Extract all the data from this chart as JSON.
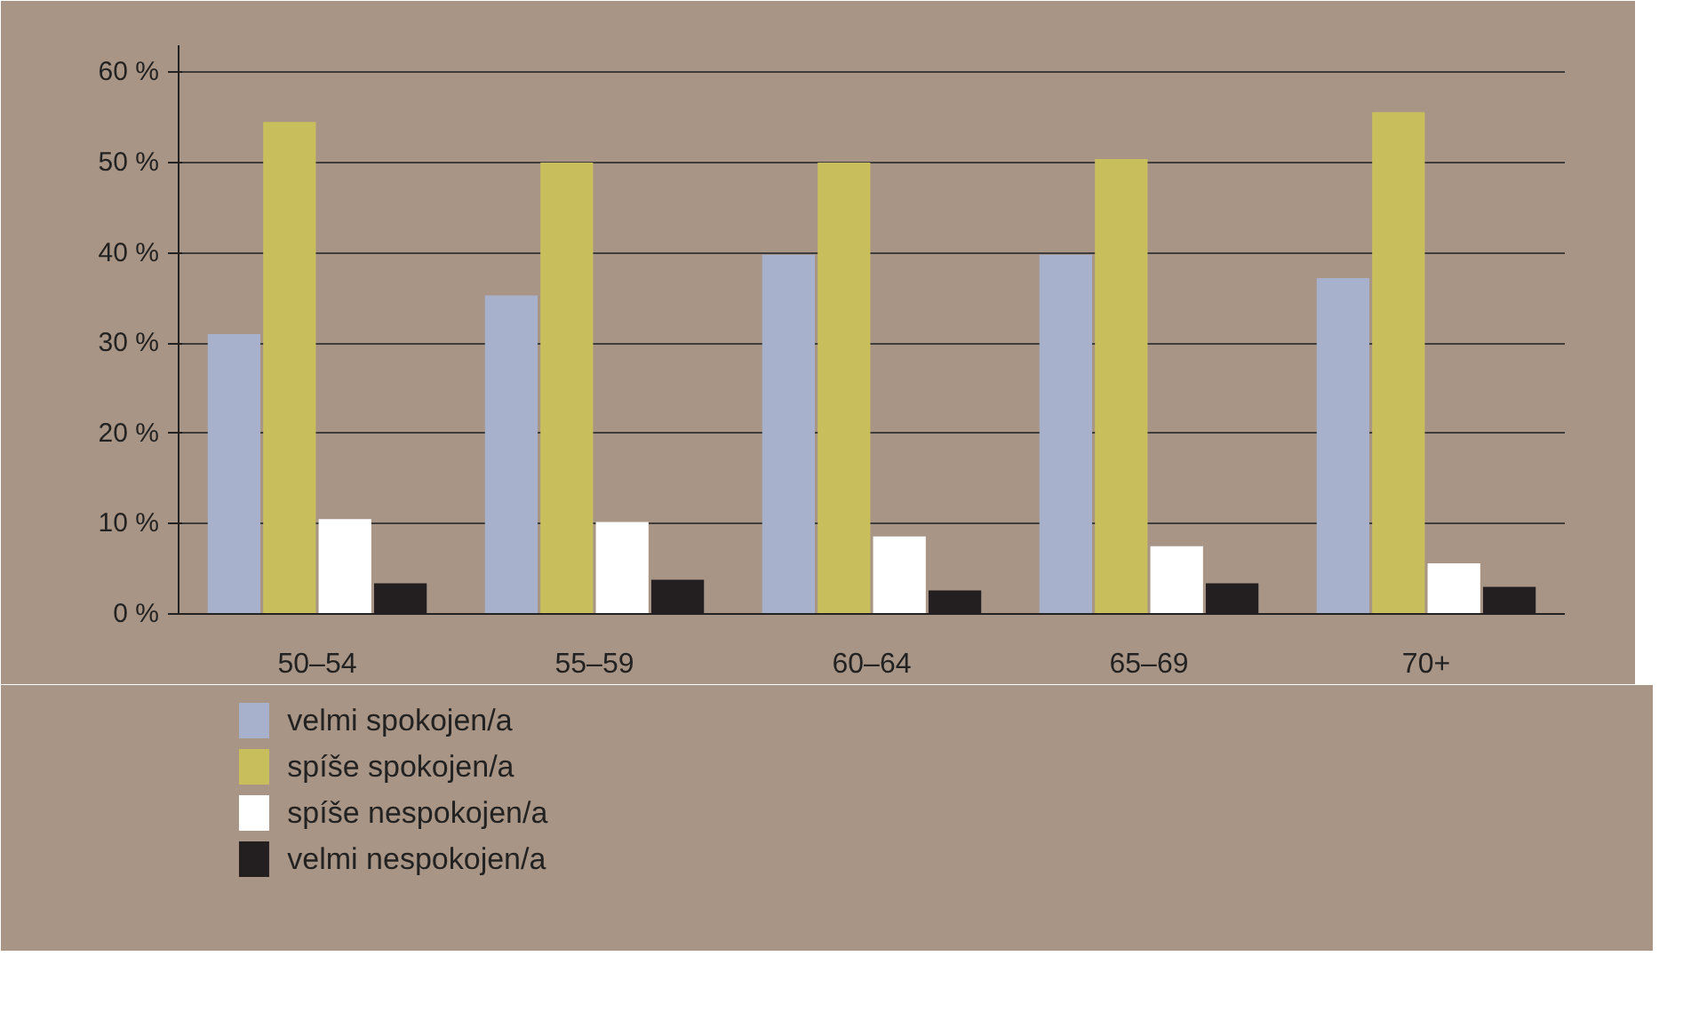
{
  "chart_data": {
    "type": "bar",
    "categories": [
      "50–54",
      "55–59",
      "60–64",
      "65–69",
      "70+"
    ],
    "series": [
      {
        "name": "velmi spokojen/a",
        "color": "#a7b1cc",
        "values": [
          31,
          35.3,
          39.8,
          39.8,
          37.2
        ]
      },
      {
        "name": "spíše spokojen/a",
        "color": "#c8bf5c",
        "values": [
          54.5,
          50,
          50,
          50.4,
          55.6
        ]
      },
      {
        "name": "spíše nespokojen/a",
        "color": "#ffffff",
        "values": [
          10.5,
          10.2,
          8.6,
          7.5,
          5.6
        ]
      },
      {
        "name": "velmi nespokojen/a",
        "color": "#231f20",
        "values": [
          3.4,
          3.8,
          2.6,
          3.4,
          3.0
        ]
      }
    ],
    "ylim": [
      0,
      63
    ],
    "yticks": [
      {
        "value": 0,
        "label": "0 %"
      },
      {
        "value": 10,
        "label": "10 %"
      },
      {
        "value": 20,
        "label": "20 %"
      },
      {
        "value": 30,
        "label": "30 %"
      },
      {
        "value": 40,
        "label": "40 %"
      },
      {
        "value": 50,
        "label": "50 %"
      },
      {
        "value": 60,
        "label": "60 %"
      }
    ],
    "grid": "y",
    "legend": "bottom"
  }
}
